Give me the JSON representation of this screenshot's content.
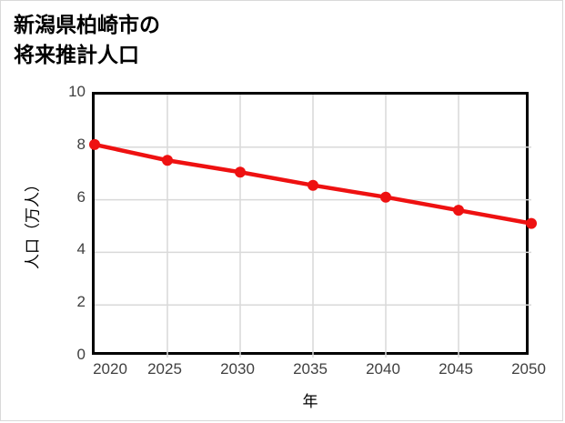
{
  "chart_data": {
    "type": "line",
    "title_lines": [
      "新潟県柏崎市の",
      "将来推計人口"
    ],
    "title": "新潟県柏崎市の将来推計人口",
    "xlabel": "年",
    "ylabel": "人口（万人）",
    "x": [
      2020,
      2025,
      2030,
      2035,
      2040,
      2045,
      2050
    ],
    "values": [
      8.1,
      7.5,
      7.05,
      6.55,
      6.1,
      5.6,
      5.1
    ],
    "x_ticks": [
      2020,
      2025,
      2030,
      2035,
      2040,
      2045,
      2050
    ],
    "y_ticks": [
      0,
      2,
      4,
      6,
      8,
      10
    ],
    "xlim": [
      2020,
      2050
    ],
    "ylim": [
      0,
      10
    ],
    "grid": true,
    "legend": false,
    "line_color": "#ee1111",
    "marker": "circle",
    "grid_color": "#d9d9d9",
    "axis_color": "#000000",
    "tick_label_color": "#404040",
    "background_color": "#ffffff"
  }
}
